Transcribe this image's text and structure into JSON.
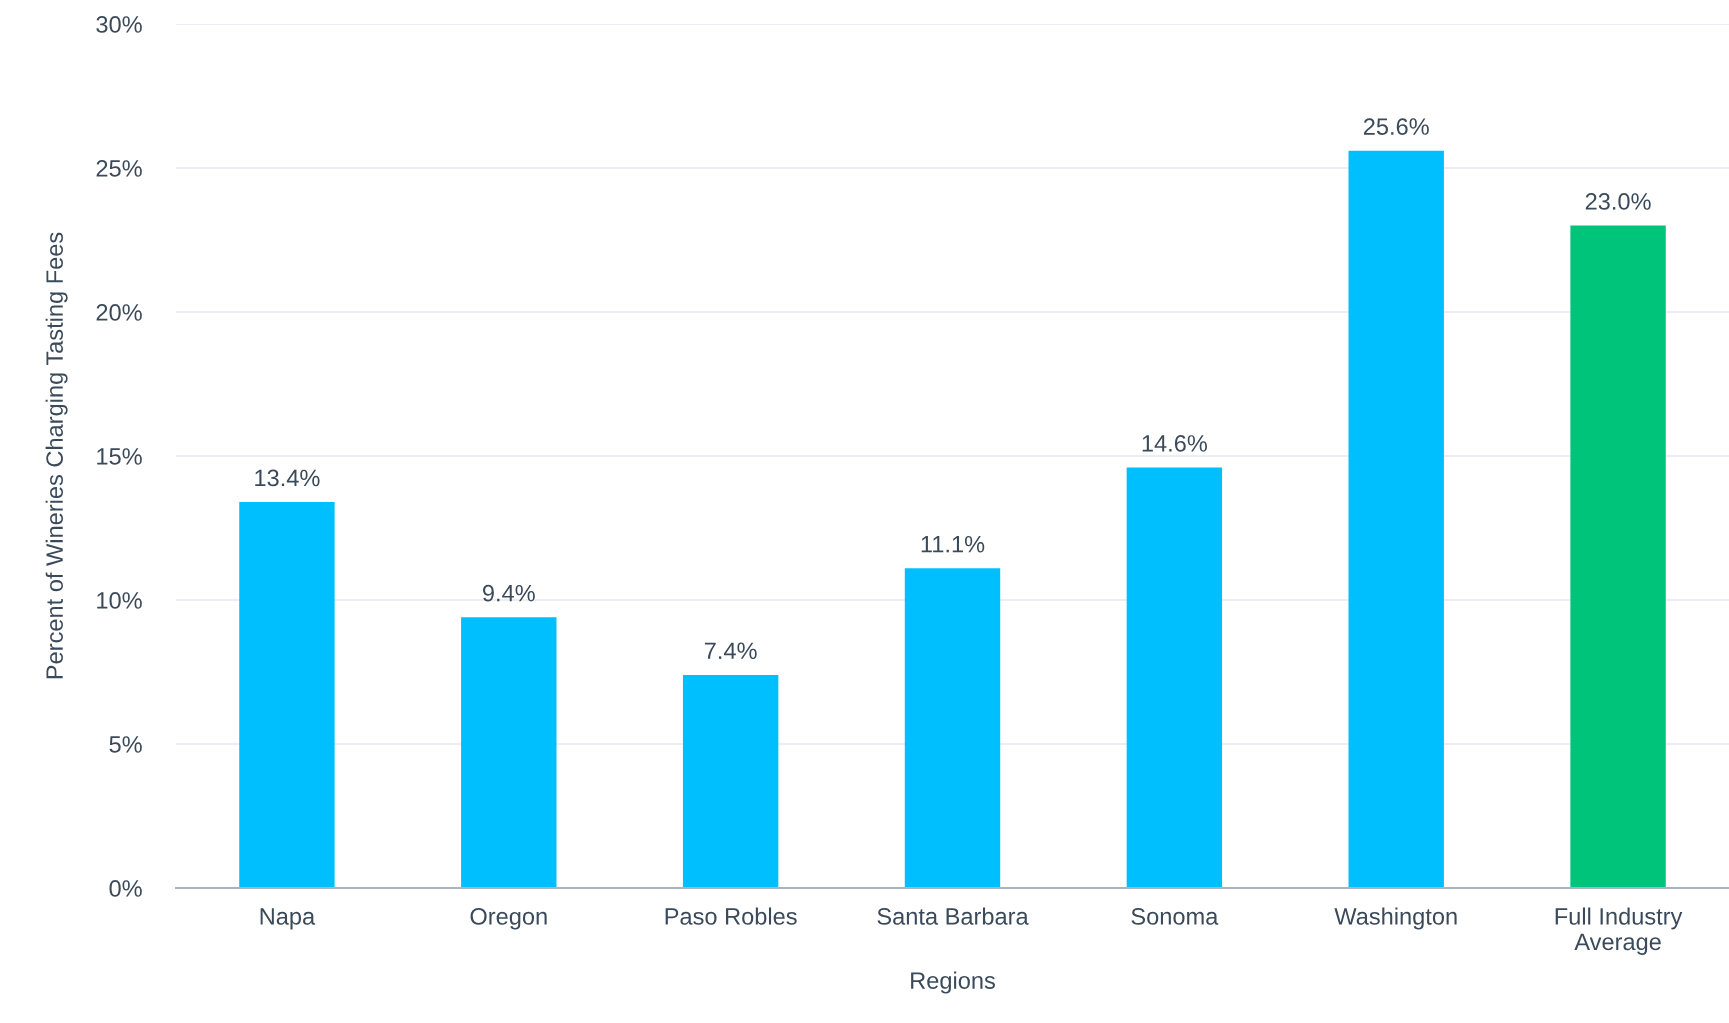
{
  "chart_data": {
    "type": "bar",
    "xlabel": "Regions",
    "ylabel": "Percent of Wineries Charging Tasting Fees",
    "categories": [
      "Napa",
      "Oregon",
      "Paso Robles",
      "Santa Barbara",
      "Sonoma",
      "Washington",
      "Full Industry\nAverage"
    ],
    "values": [
      13.4,
      9.4,
      7.4,
      11.1,
      14.6,
      25.6,
      23.0
    ],
    "colors": [
      "#00bfff",
      "#00bfff",
      "#00bfff",
      "#00bfff",
      "#00bfff",
      "#00bfff",
      "#00c47a"
    ],
    "value_labels": [
      "13.4%",
      "9.4%",
      "7.4%",
      "11.1%",
      "14.6%",
      "25.6%",
      "23.0%"
    ],
    "ylim": [
      0,
      30
    ],
    "yticks": [
      {
        "value": 0,
        "label": "0%"
      },
      {
        "value": 5,
        "label": "5%"
      },
      {
        "value": 10,
        "label": "10%"
      },
      {
        "value": 15,
        "label": "15%"
      },
      {
        "value": 20,
        "label": "20%"
      },
      {
        "value": 25,
        "label": "25%"
      },
      {
        "value": 30,
        "label": "30%"
      }
    ],
    "grid": "y"
  }
}
